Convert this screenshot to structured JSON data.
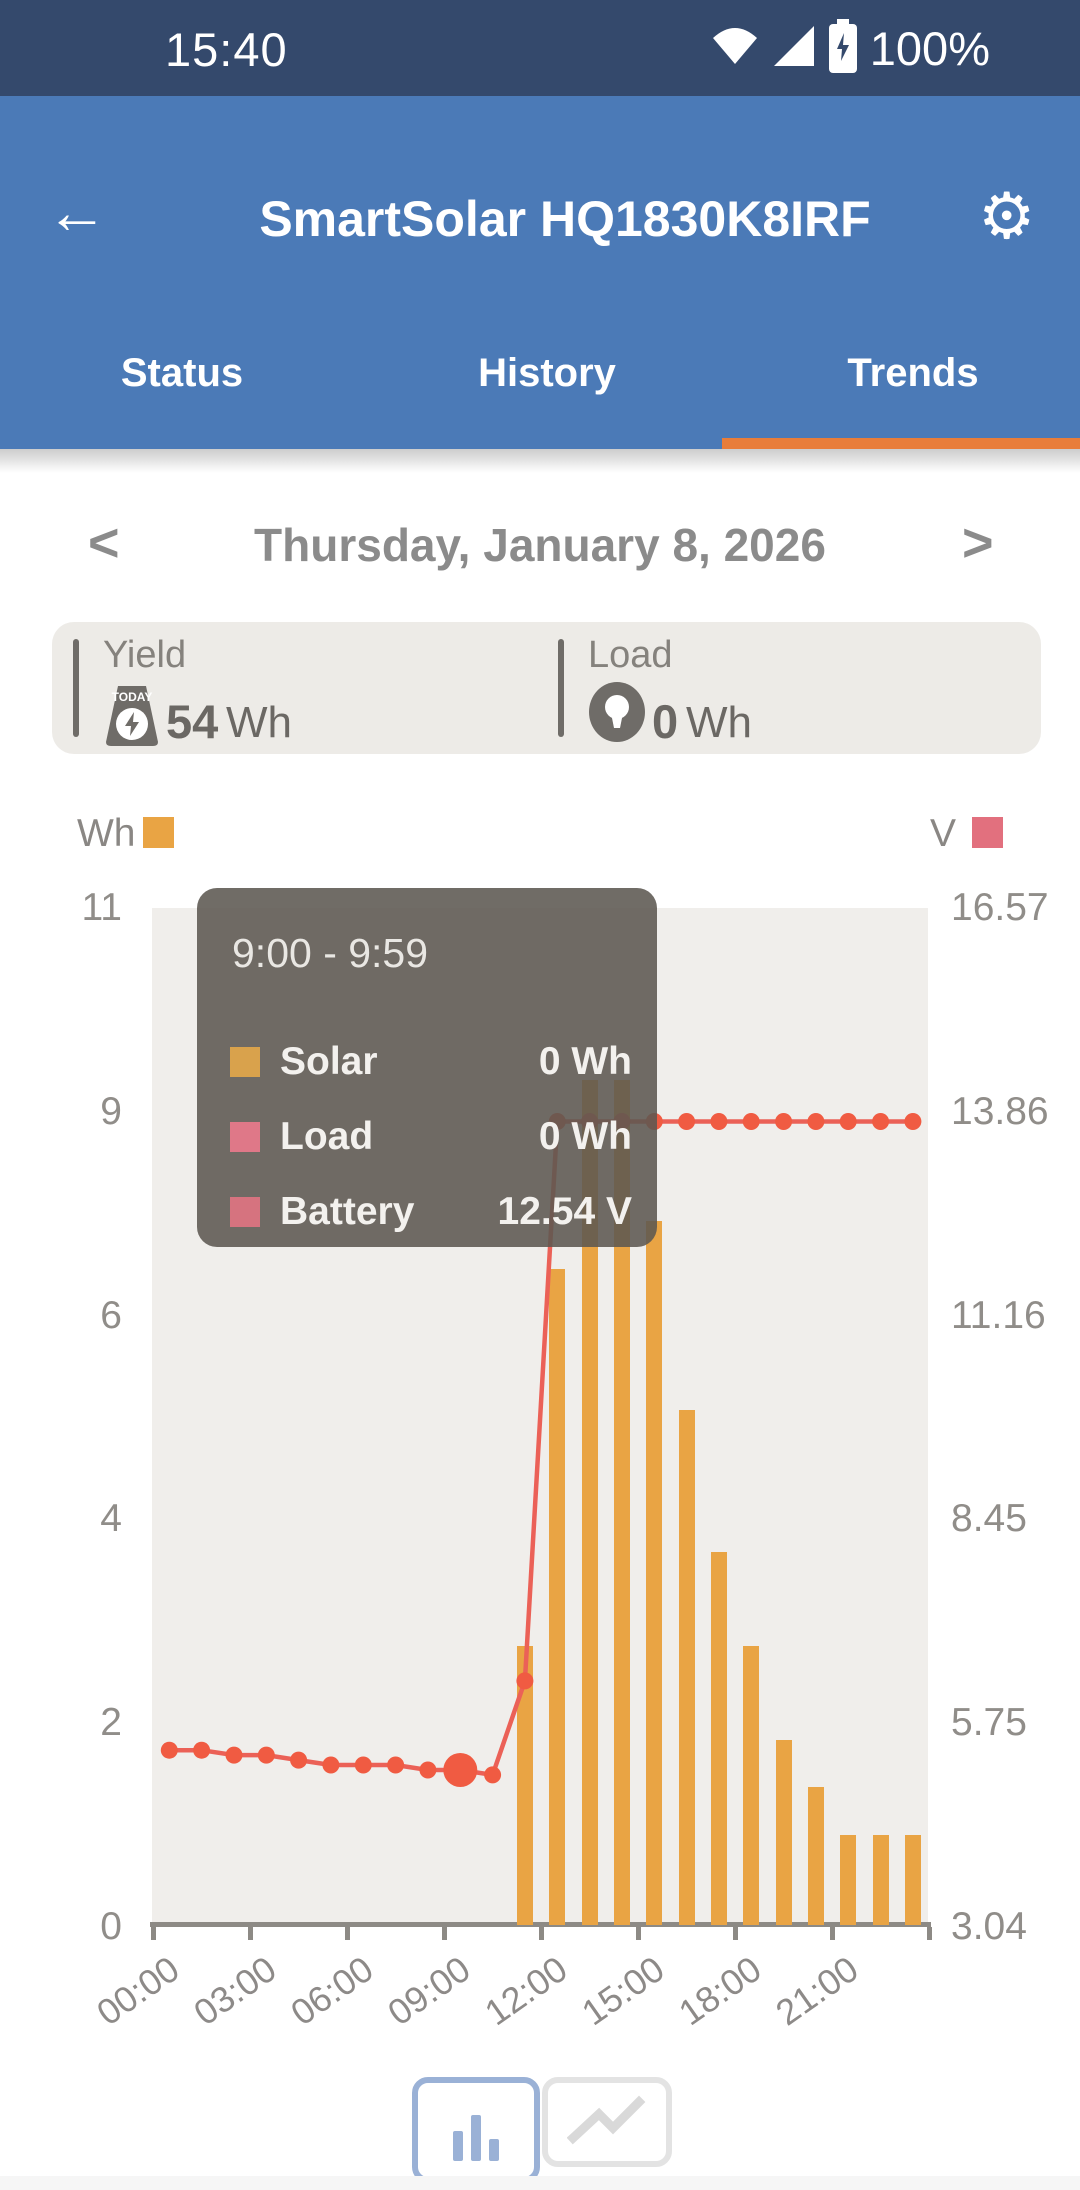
{
  "status_bar": {
    "time": "15:40",
    "battery_percent": "100%"
  },
  "app_bar": {
    "back_glyph": "←",
    "title": "SmartSolar HQ1830K8IRF",
    "gear_glyph": "⚙"
  },
  "tabs": {
    "status": "Status",
    "history": "History",
    "trends": "Trends",
    "active": "Trends"
  },
  "date_nav": {
    "prev_glyph": "<",
    "date": "Thursday, January 8, 2026",
    "next_glyph": ">"
  },
  "summary": {
    "yield": {
      "label": "Yield",
      "value": "54",
      "unit": "Wh",
      "icon_text": "TODAY"
    },
    "load": {
      "label": "Load",
      "value": "0",
      "unit": "Wh"
    }
  },
  "legend": {
    "left_unit": "Wh",
    "right_unit": "V"
  },
  "tooltip": {
    "title": "9:00 - 9:59",
    "rows": [
      {
        "label": "Solar",
        "value": "0 Wh",
        "color": "#d9a24c"
      },
      {
        "label": "Load",
        "value": "0 Wh",
        "color": "#df7888"
      },
      {
        "label": "Battery",
        "value": "12.54 V",
        "color": "#d6737f"
      }
    ]
  },
  "toggle": {
    "selected": "bar"
  },
  "colors": {
    "bar_orange": "#e9a444",
    "line_red": "#eb6157",
    "dot_red": "#f05b42",
    "accent_orange": "#e87d3a",
    "appbar_blue": "#4b7ab7",
    "statusbar_navy": "#34496c"
  },
  "chart_data": {
    "type": "bar",
    "title": "Solar yield and battery voltage per hour",
    "x": [
      0,
      1,
      2,
      3,
      4,
      5,
      6,
      7,
      8,
      9,
      10,
      11,
      12,
      13,
      14,
      15,
      16,
      17,
      18,
      19,
      20,
      21,
      22,
      23
    ],
    "series": [
      {
        "name": "Solar",
        "type": "bar",
        "unit": "Wh",
        "values": [
          0,
          0,
          0,
          0,
          0,
          0,
          0,
          0,
          0,
          0,
          0,
          3.0,
          7.0,
          9.0,
          9.0,
          7.5,
          5.5,
          4.0,
          3.0,
          2.0,
          1.5,
          1.0,
          1.0,
          1.0
        ]
      },
      {
        "name": "Load",
        "type": "bar",
        "unit": "Wh",
        "values": [
          0,
          0,
          0,
          0,
          0,
          0,
          0,
          0,
          0,
          0,
          0,
          0,
          0,
          0,
          0,
          0,
          0,
          0,
          0,
          0,
          0,
          0,
          0,
          0
        ]
      },
      {
        "name": "Battery",
        "type": "line",
        "unit": "V",
        "values": [
          12.58,
          12.58,
          12.57,
          12.57,
          12.56,
          12.55,
          12.55,
          12.55,
          12.54,
          12.54,
          12.53,
          12.72,
          13.85,
          13.85,
          13.85,
          13.85,
          13.85,
          13.85,
          13.85,
          13.85,
          13.85,
          13.85,
          13.85,
          13.85
        ]
      }
    ],
    "selected_index": 9,
    "left_axis": {
      "unit": "Wh",
      "tick_labels": [
        "11",
        "9",
        "6",
        "4",
        "2",
        "0"
      ],
      "min": 0,
      "max": 10.8
    },
    "right_axis": {
      "unit": "V",
      "tick_labels": [
        "16.57",
        "13.86",
        "11.16",
        "8.45",
        "5.75",
        "3.04"
      ]
    },
    "x_axis": {
      "tick_labels": [
        "00:00",
        "03:00",
        "06:00",
        "09:00",
        "12:00",
        "15:00",
        "18:00",
        "21:00"
      ],
      "tick_every_hours": 3
    },
    "grid": false,
    "legend_position": "top"
  }
}
